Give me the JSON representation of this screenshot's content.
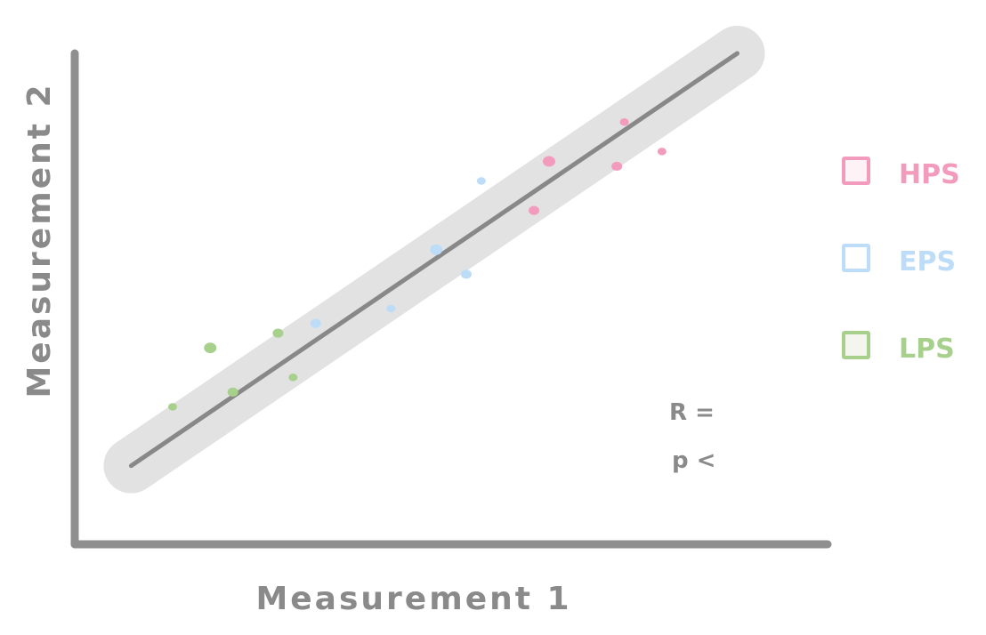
{
  "chart_data": {
    "type": "scatter",
    "title": "",
    "xlabel": "Measurement 1",
    "ylabel": "Measurement 2",
    "xlim": [
      0,
      10
    ],
    "ylim": [
      0,
      10
    ],
    "grid": false,
    "legend_position": "right",
    "series": [
      {
        "name": "HPS",
        "color": "#f29bbd",
        "points": [
          {
            "x": 7.3,
            "y": 8.6
          },
          {
            "x": 6.3,
            "y": 7.8
          },
          {
            "x": 7.2,
            "y": 7.7
          },
          {
            "x": 7.8,
            "y": 8.0
          },
          {
            "x": 6.1,
            "y": 6.8
          }
        ]
      },
      {
        "name": "EPS",
        "color": "#bcdcf8",
        "points": [
          {
            "x": 5.4,
            "y": 7.4
          },
          {
            "x": 4.8,
            "y": 6.0
          },
          {
            "x": 5.2,
            "y": 5.5
          },
          {
            "x": 4.2,
            "y": 4.8
          },
          {
            "x": 3.2,
            "y": 4.5
          }
        ]
      },
      {
        "name": "LPS",
        "color": "#a8d08d",
        "points": [
          {
            "x": 1.3,
            "y": 2.8
          },
          {
            "x": 1.8,
            "y": 4.0
          },
          {
            "x": 2.7,
            "y": 4.3
          },
          {
            "x": 2.9,
            "y": 3.4
          },
          {
            "x": 2.1,
            "y": 3.1
          }
        ]
      }
    ],
    "trendline": {
      "x1": 0.75,
      "y1": 1.6,
      "x2": 8.8,
      "y2": 10.0
    },
    "annotations": [
      "R =",
      "p <"
    ]
  },
  "style": {
    "axis_color": "#8f8f8f",
    "band_color": "#e2e2e2",
    "line_color": "#888888"
  }
}
